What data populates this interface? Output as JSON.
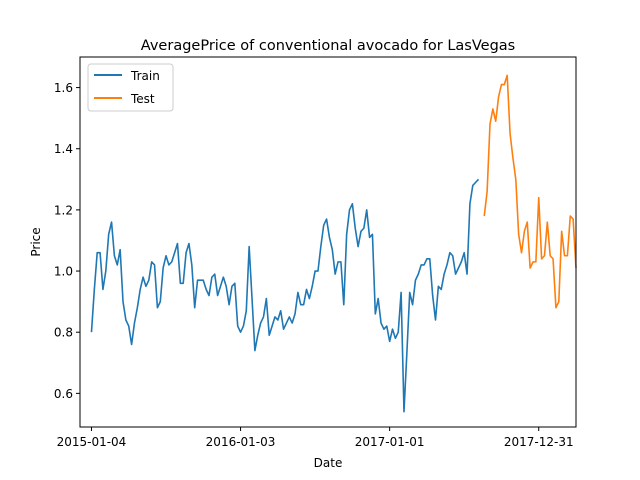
{
  "chart_data": {
    "type": "line",
    "title": "AveragePrice of conventional avocado for LasVegas",
    "xlabel": "Date",
    "ylabel": "Price",
    "x_ticks": [
      "2015-01-04",
      "2016-01-03",
      "2017-01-01",
      "2017-12-31"
    ],
    "y_ticks": [
      "0.6",
      "0.8",
      "1.0",
      "1.2",
      "1.4",
      "1.6"
    ],
    "xlim": [
      "2014-12-07",
      "2018-04-01"
    ],
    "ylim": [
      0.49,
      1.7
    ],
    "grid": false,
    "legend": "top-left",
    "colors": {
      "train": "#1f77b4",
      "test": "#ff7f0e"
    },
    "series": [
      {
        "name": "Train",
        "start": "2015-01-04",
        "step_days": 7,
        "values": [
          0.8,
          0.94,
          1.06,
          1.06,
          0.94,
          1.0,
          1.12,
          1.16,
          1.05,
          1.02,
          1.07,
          0.9,
          0.84,
          0.82,
          0.76,
          0.83,
          0.88,
          0.94,
          0.98,
          0.95,
          0.97,
          1.03,
          1.02,
          0.88,
          0.9,
          1.01,
          1.05,
          1.02,
          1.03,
          1.06,
          1.09,
          0.96,
          0.96,
          1.06,
          1.09,
          1.02,
          0.88,
          0.97,
          0.97,
          0.97,
          0.94,
          0.92,
          0.98,
          0.99,
          0.92,
          0.95,
          0.98,
          0.95,
          0.89,
          0.95,
          0.96,
          0.82,
          0.8,
          0.82,
          0.87,
          1.08,
          0.91,
          0.74,
          0.79,
          0.83,
          0.85,
          0.91,
          0.79,
          0.82,
          0.85,
          0.84,
          0.87,
          0.81,
          0.83,
          0.85,
          0.83,
          0.86,
          0.93,
          0.89,
          0.89,
          0.94,
          0.91,
          0.95,
          1.0,
          1.0,
          1.08,
          1.15,
          1.17,
          1.11,
          1.07,
          0.99,
          1.03,
          1.03,
          0.89,
          1.12,
          1.2,
          1.22,
          1.14,
          1.08,
          1.13,
          1.14,
          1.2,
          1.11,
          1.12,
          0.86,
          0.91,
          0.83,
          0.81,
          0.82,
          0.77,
          0.81,
          0.78,
          0.8,
          0.93,
          0.54,
          0.73,
          0.93,
          0.89,
          0.97,
          0.99,
          1.02,
          1.02,
          1.04,
          1.04,
          0.92,
          0.84,
          0.95,
          0.94,
          0.99,
          1.02,
          1.06,
          1.05,
          0.99,
          1.01,
          1.03,
          1.06,
          0.99,
          1.22,
          1.28,
          1.29,
          1.3
        ]
      },
      {
        "name": "Test",
        "start": "2017-08-20",
        "step_days": 7,
        "values": [
          1.18,
          1.26,
          1.48,
          1.53,
          1.49,
          1.57,
          1.61,
          1.61,
          1.64,
          1.45,
          1.37,
          1.3,
          1.12,
          1.06,
          1.13,
          1.16,
          1.01,
          1.03,
          1.03,
          1.24,
          1.04,
          1.05,
          1.16,
          1.05,
          1.04,
          0.88,
          0.9,
          1.13,
          1.05,
          1.05,
          1.18,
          1.17,
          1.01
        ]
      }
    ]
  }
}
